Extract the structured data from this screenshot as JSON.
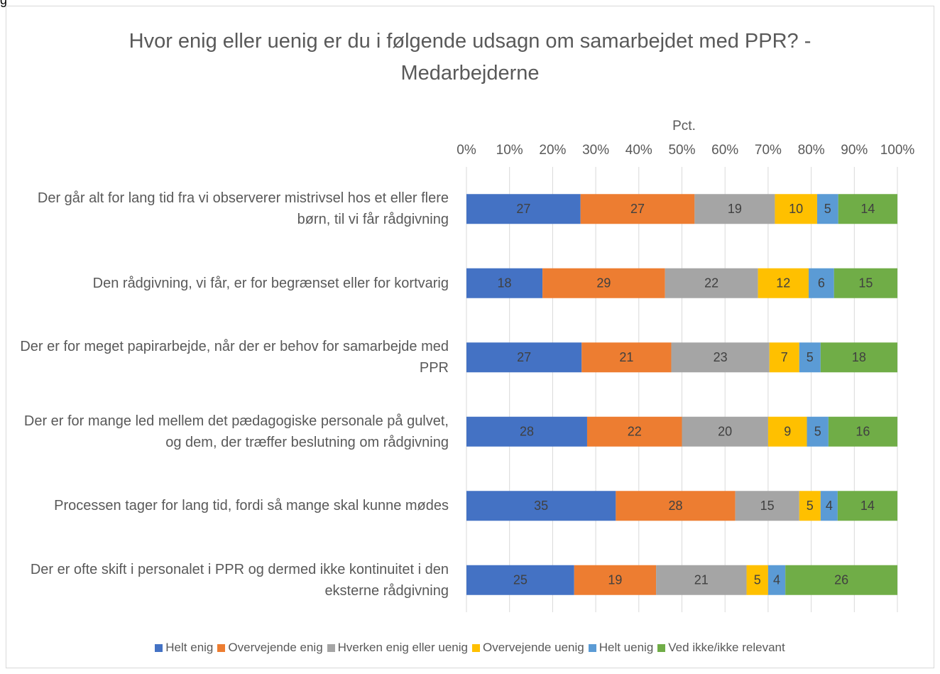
{
  "corner_text": "g",
  "chart_data": {
    "type": "bar",
    "orientation": "horizontal",
    "stacking": "percent",
    "title": "Hvor enig eller uenig er du i følgende udsagn om samarbejdet med PPR? - Medarbejderne",
    "x_label": "Pct.",
    "categories": [
      "Der går alt for lang tid fra vi observerer mistrivsel hos et eller flere børn, til vi får rådgivning",
      "Den rådgivning, vi får, er for begrænset eller for kortvarig",
      "Der er for meget papirarbejde, når der er behov for samarbejde med PPR",
      "Der er for mange led mellem det pædagogiske personale på gulvet, og dem, der træffer beslutning om rådgivning",
      "Processen tager for lang tid, fordi så mange skal kunne mødes",
      "Der er ofte skift i personalet i PPR og dermed ikke kontinuitet i den eksterne rådgivning"
    ],
    "series": [
      {
        "name": "Helt enig",
        "color": "#4472c4",
        "values": [
          27,
          18,
          27,
          28,
          35,
          25
        ]
      },
      {
        "name": "Overvejende enig",
        "color": "#ed7d31",
        "values": [
          27,
          29,
          21,
          22,
          28,
          19
        ]
      },
      {
        "name": "Hverken enig eller uenig",
        "color": "#a5a5a5",
        "values": [
          19,
          22,
          23,
          20,
          15,
          21
        ]
      },
      {
        "name": "Overvejende uenig",
        "color": "#ffc000",
        "values": [
          10,
          12,
          7,
          9,
          5,
          5
        ]
      },
      {
        "name": "Helt uenig",
        "color": "#5b9bd5",
        "values": [
          5,
          6,
          5,
          5,
          4,
          4
        ]
      },
      {
        "name": "Ved ikke/ikke relevant",
        "color": "#70ad47",
        "values": [
          14,
          15,
          18,
          16,
          14,
          26
        ]
      }
    ],
    "xlim": [
      0,
      100
    ],
    "xticks": [
      {
        "value": 0,
        "label": "0%"
      },
      {
        "value": 10,
        "label": "10%"
      },
      {
        "value": 20,
        "label": "20%"
      },
      {
        "value": 30,
        "label": "30%"
      },
      {
        "value": 40,
        "label": "40%"
      },
      {
        "value": 50,
        "label": "50%"
      },
      {
        "value": 60,
        "label": "60%"
      },
      {
        "value": 70,
        "label": "70%"
      },
      {
        "value": 80,
        "label": "80%"
      },
      {
        "value": 90,
        "label": "90%"
      },
      {
        "value": 100,
        "label": "100%"
      }
    ],
    "grid": true,
    "legend": "bottom"
  }
}
